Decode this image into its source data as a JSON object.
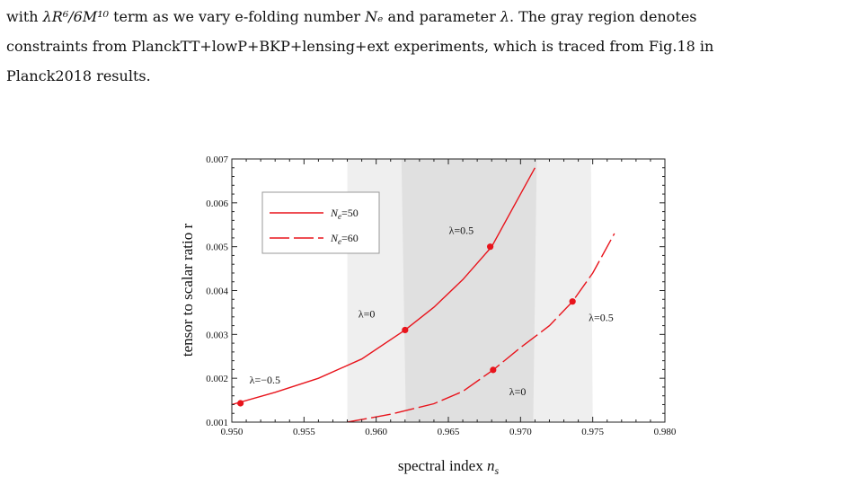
{
  "caption": {
    "line1_prefix": "with",
    "line1_term": "λR⁶/6M¹⁰",
    "line1_mid": "term as we vary e-folding number",
    "line1_ne": "Nₑ",
    "line1_and": "and parameter",
    "line1_lambda": "λ",
    "line1_rest": ". The gray region denotes",
    "line2": "constraints from PlanckTT+lowP+BKP+lensing+ext experiments, which is traced from Fig.18 in",
    "line3": "Planck2018 results."
  },
  "chart_data": {
    "type": "line",
    "title": "",
    "xlabel": "spectral index n_s",
    "ylabel": "tensor to scalar ratio r",
    "xlim": [
      0.95,
      0.98
    ],
    "ylim": [
      0.001,
      0.007
    ],
    "xticks": [
      "0.950",
      "0.955",
      "0.960",
      "0.965",
      "0.970",
      "0.975",
      "0.980"
    ],
    "yticks": [
      "0.001",
      "0.002",
      "0.003",
      "0.004",
      "0.005",
      "0.006",
      "0.007"
    ],
    "grid": false,
    "legend_position": "top-left",
    "colors": {
      "series": "#e8141c",
      "region_outer": "#efefef",
      "region_inner": "#e0e0e0"
    },
    "regions": [
      {
        "name": "outer",
        "bounds": [
          0.958,
          0.975
        ]
      },
      {
        "name": "inner",
        "bounds": [
          0.962,
          0.971
        ]
      }
    ],
    "series": [
      {
        "name": "Ne=50",
        "style": "solid",
        "x": [
          0.95,
          0.953,
          0.956,
          0.959,
          0.962,
          0.964,
          0.966,
          0.968,
          0.9695,
          0.971
        ],
        "y": [
          0.0014,
          0.00168,
          0.002,
          0.00244,
          0.0031,
          0.00362,
          0.00425,
          0.005,
          0.0059,
          0.0068
        ],
        "markers": [
          {
            "x": 0.9506,
            "y": 0.00143,
            "label": "λ=−0.5"
          },
          {
            "x": 0.962,
            "y": 0.0031,
            "label": "λ=0"
          },
          {
            "x": 0.9679,
            "y": 0.005,
            "label": "λ=0.5"
          }
        ]
      },
      {
        "name": "Ne=60",
        "style": "dashed",
        "x": [
          0.958,
          0.961,
          0.964,
          0.966,
          0.9681,
          0.97,
          0.972,
          0.9736,
          0.975,
          0.9765
        ],
        "y": [
          0.001,
          0.00118,
          0.00142,
          0.0017,
          0.00219,
          0.0027,
          0.0032,
          0.00375,
          0.0044,
          0.0053
        ],
        "markers": [
          {
            "x": 0.9681,
            "y": 0.00219,
            "label": "λ=0"
          },
          {
            "x": 0.9736,
            "y": 0.00375,
            "label": "λ=0.5"
          }
        ]
      }
    ]
  }
}
